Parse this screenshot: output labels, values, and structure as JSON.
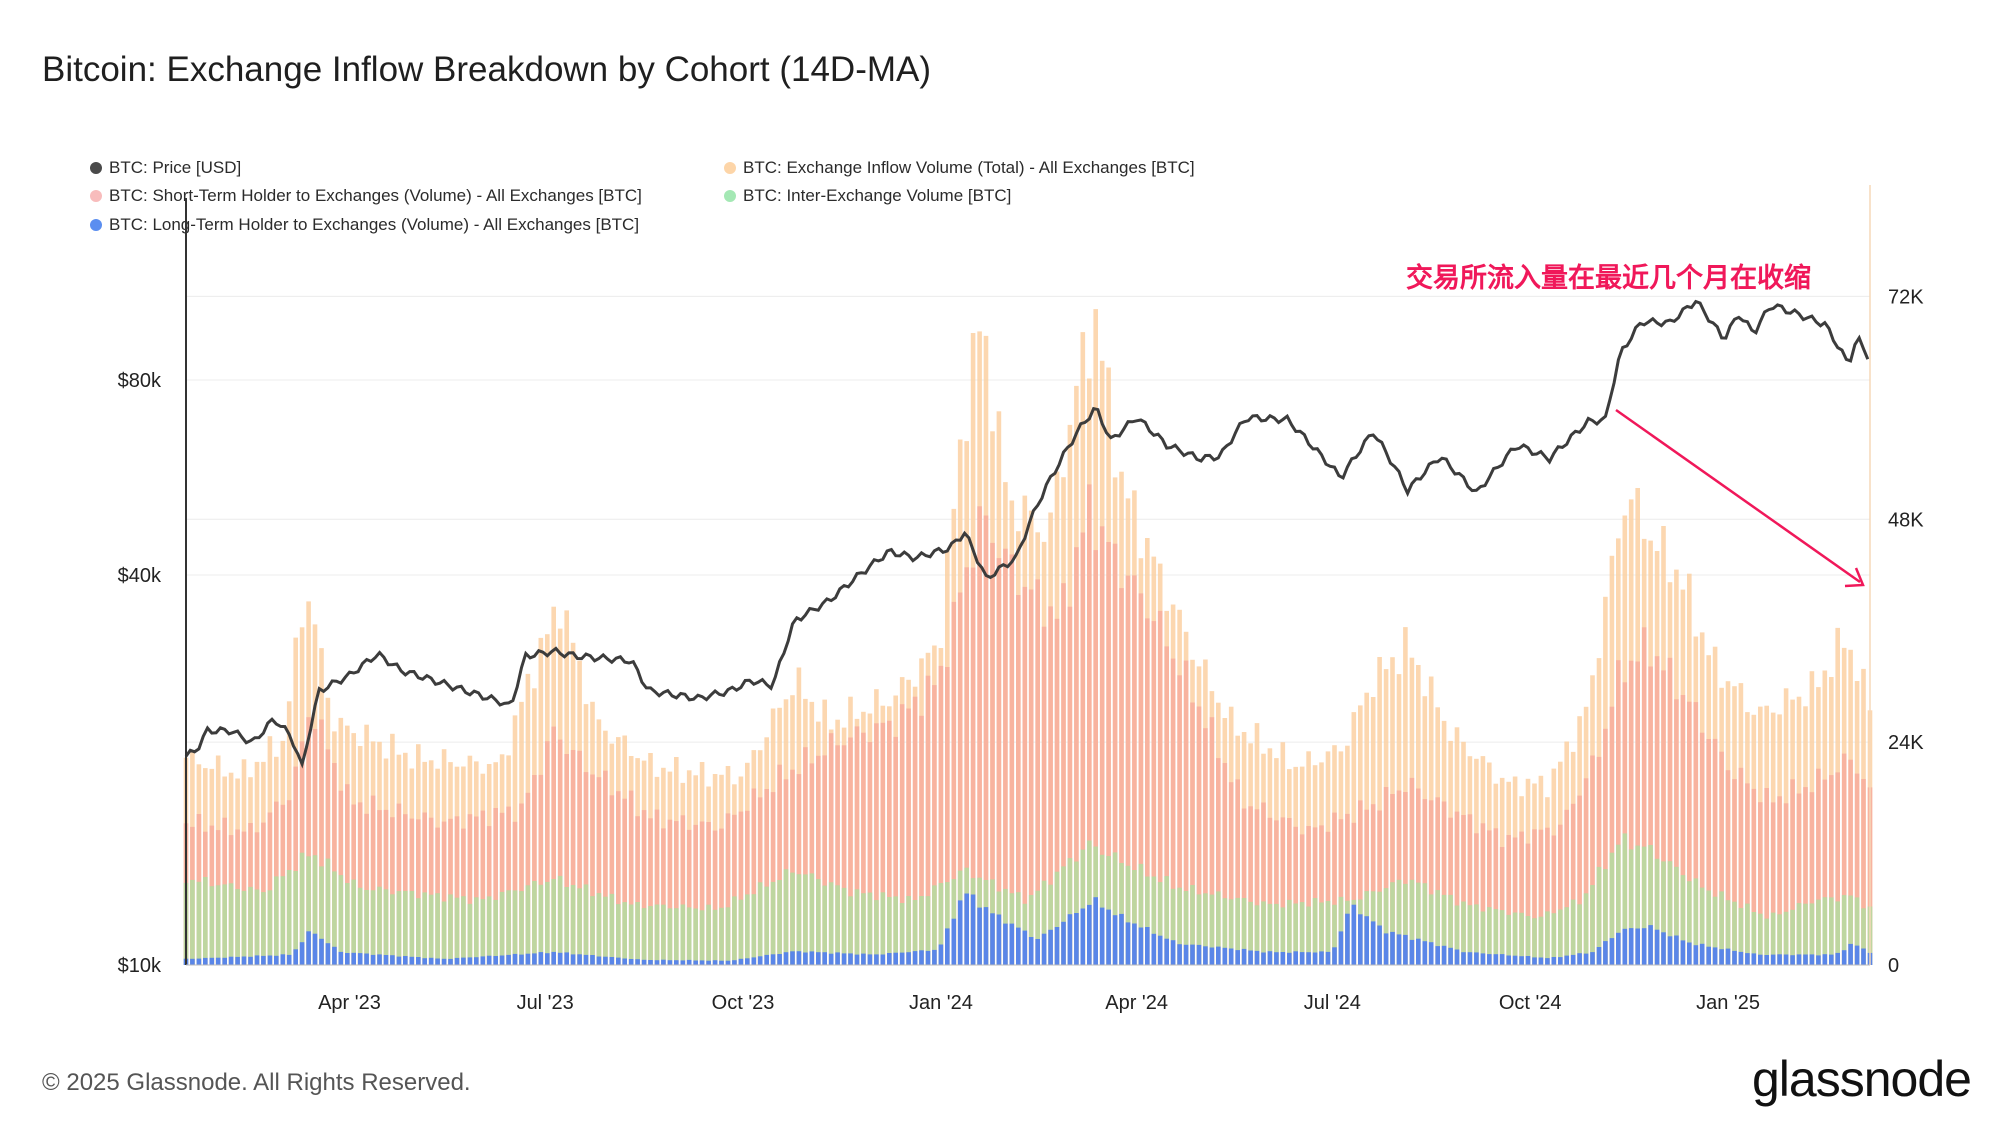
{
  "title": "Bitcoin: Exchange Inflow Breakdown by Cohort (14D-MA)",
  "legend": [
    {
      "label": "BTC: Price [USD]",
      "color": "#4a4a4a"
    },
    {
      "label": "BTC: Exchange Inflow Volume (Total) - All Exchanges [BTC]",
      "color": "#fdd5a8"
    },
    {
      "label": "BTC: Short-Term Holder to Exchanges (Volume) - All Exchanges [BTC]",
      "color": "#f8bcbc"
    },
    {
      "label": "BTC: Inter-Exchange Volume [BTC]",
      "color": "#a4e8b4"
    },
    {
      "label": "BTC: Long-Term Holder to Exchanges (Volume) - All Exchanges [BTC]",
      "color": "#5b8ef0"
    }
  ],
  "annotation": "交易所流入量在最近几个月在收缩",
  "footer": {
    "copyright": "© 2025 Glassnode. All Rights Reserved.",
    "brand": "glassnode"
  },
  "colors": {
    "total": "#fcd0a2",
    "sth": "#f7ad9c",
    "inter": "#b7d9a0",
    "lth": "#5a86e8",
    "price": "#3c3c3c",
    "annotation": "#f0185a",
    "grid": "#ececec"
  },
  "chart_data": {
    "type": "bar",
    "x_start": "2023-01-15",
    "x_end": "2025-03-08",
    "x_ticks": [
      {
        "date": "2023-04-01",
        "label": "Apr '23"
      },
      {
        "date": "2023-07-01",
        "label": "Jul '23"
      },
      {
        "date": "2023-10-01",
        "label": "Oct '23"
      },
      {
        "date": "2024-01-01",
        "label": "Jan '24"
      },
      {
        "date": "2024-04-01",
        "label": "Apr '24"
      },
      {
        "date": "2024-07-01",
        "label": "Jul '24"
      },
      {
        "date": "2024-10-01",
        "label": "Oct '24"
      },
      {
        "date": "2025-01-01",
        "label": "Jan '25"
      }
    ],
    "y_left": {
      "scale": "log",
      "ticks": [
        {
          "value": 10000,
          "label": "$10k"
        },
        {
          "value": 40000,
          "label": "$40k"
        },
        {
          "value": 80000,
          "label": "$80k"
        }
      ],
      "range": [
        10000,
        160000
      ]
    },
    "y_right": {
      "scale": "linear",
      "ticks": [
        {
          "value": 0,
          "label": "0"
        },
        {
          "value": 24000,
          "label": "24K"
        },
        {
          "value": 48000,
          "label": "48K"
        },
        {
          "value": 72000,
          "label": "72K"
        }
      ],
      "range": [
        0,
        84000
      ]
    },
    "stacking": "overlaid",
    "series": [
      {
        "name": "BTC: Exchange Inflow Volume (Total) - All Exchanges [BTC]",
        "axis": "right",
        "points": [
          [
            "2023-01-15",
            24000
          ],
          [
            "2023-02-10",
            22000
          ],
          [
            "2023-03-01",
            26000
          ],
          [
            "2023-03-12",
            44000
          ],
          [
            "2023-03-25",
            28000
          ],
          [
            "2023-05-01",
            24000
          ],
          [
            "2023-06-10",
            23000
          ],
          [
            "2023-06-25",
            34000
          ],
          [
            "2023-07-08",
            42000
          ],
          [
            "2023-07-25",
            28000
          ],
          [
            "2023-08-20",
            23000
          ],
          [
            "2023-09-15",
            22000
          ],
          [
            "2023-10-01",
            22000
          ],
          [
            "2023-10-25",
            33000
          ],
          [
            "2023-11-10",
            28000
          ],
          [
            "2023-12-10",
            31000
          ],
          [
            "2023-12-31",
            37000
          ],
          [
            "2024-01-12",
            64000
          ],
          [
            "2024-01-20",
            75000
          ],
          [
            "2024-02-01",
            54000
          ],
          [
            "2024-02-20",
            50000
          ],
          [
            "2024-03-05",
            68000
          ],
          [
            "2024-03-13",
            75000
          ],
          [
            "2024-03-25",
            56000
          ],
          [
            "2024-04-12",
            45000
          ],
          [
            "2024-04-28",
            36000
          ],
          [
            "2024-05-15",
            28000
          ],
          [
            "2024-06-15",
            23000
          ],
          [
            "2024-07-05",
            25000
          ],
          [
            "2024-07-20",
            33000
          ],
          [
            "2024-08-05",
            37000
          ],
          [
            "2024-08-25",
            27000
          ],
          [
            "2024-09-20",
            21000
          ],
          [
            "2024-10-10",
            21000
          ],
          [
            "2024-10-28",
            30000
          ],
          [
            "2024-11-05",
            42000
          ],
          [
            "2024-11-15",
            55000
          ],
          [
            "2024-11-25",
            50000
          ],
          [
            "2024-12-10",
            45000
          ],
          [
            "2024-12-25",
            35000
          ],
          [
            "2025-01-15",
            29000
          ],
          [
            "2025-02-10",
            32000
          ],
          [
            "2025-02-25",
            38000
          ],
          [
            "2025-03-08",
            30000
          ]
        ]
      },
      {
        "name": "BTC: Short-Term Holder to Exchanges (Volume) - All Exchanges [BTC]",
        "axis": "right",
        "points": [
          [
            "2023-01-15",
            16500
          ],
          [
            "2023-02-15",
            15500
          ],
          [
            "2023-03-05",
            20000
          ],
          [
            "2023-03-14",
            30000
          ],
          [
            "2023-04-01",
            19000
          ],
          [
            "2023-05-15",
            16500
          ],
          [
            "2023-06-20",
            18000
          ],
          [
            "2023-07-05",
            27000
          ],
          [
            "2023-07-20",
            23000
          ],
          [
            "2023-08-20",
            17000
          ],
          [
            "2023-09-20",
            16000
          ],
          [
            "2023-10-20",
            22000
          ],
          [
            "2023-11-15",
            26000
          ],
          [
            "2023-12-10",
            28000
          ],
          [
            "2023-12-31",
            33000
          ],
          [
            "2024-01-12",
            45000
          ],
          [
            "2024-01-20",
            52000
          ],
          [
            "2024-02-05",
            45000
          ],
          [
            "2024-02-25",
            40000
          ],
          [
            "2024-03-10",
            53000
          ],
          [
            "2024-03-20",
            48000
          ],
          [
            "2024-04-10",
            40000
          ],
          [
            "2024-04-30",
            30000
          ],
          [
            "2024-05-20",
            19000
          ],
          [
            "2024-06-20",
            15500
          ],
          [
            "2024-07-20",
            18500
          ],
          [
            "2024-08-05",
            21000
          ],
          [
            "2024-08-25",
            18000
          ],
          [
            "2024-09-20",
            14500
          ],
          [
            "2024-10-15",
            16000
          ],
          [
            "2024-11-01",
            24000
          ],
          [
            "2024-11-12",
            34000
          ],
          [
            "2024-11-25",
            37000
          ],
          [
            "2024-12-15",
            30000
          ],
          [
            "2025-01-01",
            23000
          ],
          [
            "2025-01-20",
            19000
          ],
          [
            "2025-02-10",
            21000
          ],
          [
            "2025-02-28",
            24000
          ],
          [
            "2025-03-08",
            20000
          ]
        ]
      },
      {
        "name": "BTC: Inter-Exchange Volume [BTC]",
        "axis": "right",
        "points": [
          [
            "2023-01-15",
            10000
          ],
          [
            "2023-02-20",
            8500
          ],
          [
            "2023-03-14",
            13000
          ],
          [
            "2023-04-05",
            9000
          ],
          [
            "2023-06-01",
            7500
          ],
          [
            "2023-07-05",
            10000
          ],
          [
            "2023-08-10",
            7000
          ],
          [
            "2023-09-20",
            6500
          ],
          [
            "2023-10-25",
            11000
          ],
          [
            "2023-11-20",
            8500
          ],
          [
            "2023-12-20",
            7500
          ],
          [
            "2024-01-12",
            11000
          ],
          [
            "2024-02-10",
            7500
          ],
          [
            "2024-03-10",
            14000
          ],
          [
            "2024-03-25",
            12000
          ],
          [
            "2024-04-20",
            9000
          ],
          [
            "2024-06-01",
            7000
          ],
          [
            "2024-07-10",
            7500
          ],
          [
            "2024-08-05",
            10000
          ],
          [
            "2024-09-01",
            7000
          ],
          [
            "2024-10-05",
            5500
          ],
          [
            "2024-10-25",
            7500
          ],
          [
            "2024-11-12",
            14500
          ],
          [
            "2024-11-25",
            13500
          ],
          [
            "2024-12-20",
            9000
          ],
          [
            "2025-01-20",
            5500
          ],
          [
            "2025-02-10",
            7500
          ],
          [
            "2025-02-28",
            8000
          ],
          [
            "2025-03-08",
            6500
          ]
        ]
      },
      {
        "name": "BTC: Long-Term Holder to Exchanges (Volume) - All Exchanges [BTC]",
        "axis": "right",
        "points": [
          [
            "2023-01-15",
            700
          ],
          [
            "2023-03-05",
            1200
          ],
          [
            "2023-03-14",
            4000
          ],
          [
            "2023-03-28",
            1500
          ],
          [
            "2023-05-15",
            700
          ],
          [
            "2023-07-05",
            1500
          ],
          [
            "2023-08-15",
            600
          ],
          [
            "2023-09-25",
            500
          ],
          [
            "2023-10-25",
            1600
          ],
          [
            "2023-12-01",
            1200
          ],
          [
            "2023-12-31",
            1800
          ],
          [
            "2024-01-12",
            8500
          ],
          [
            "2024-01-25",
            6000
          ],
          [
            "2024-02-15",
            3000
          ],
          [
            "2024-03-12",
            7500
          ],
          [
            "2024-03-25",
            5500
          ],
          [
            "2024-04-20",
            2500
          ],
          [
            "2024-06-01",
            1500
          ],
          [
            "2024-07-01",
            1500
          ],
          [
            "2024-07-10",
            7000
          ],
          [
            "2024-07-25",
            4000
          ],
          [
            "2024-09-01",
            1500
          ],
          [
            "2024-10-10",
            800
          ],
          [
            "2024-10-30",
            1500
          ],
          [
            "2024-11-12",
            4000
          ],
          [
            "2024-11-25",
            4500
          ],
          [
            "2024-12-15",
            2500
          ],
          [
            "2025-01-15",
            1200
          ],
          [
            "2025-02-20",
            1200
          ],
          [
            "2025-02-28",
            2500
          ],
          [
            "2025-03-08",
            1500
          ]
        ]
      },
      {
        "name": "BTC: Price [USD]",
        "axis": "left",
        "points": [
          [
            "2023-01-15",
            21000
          ],
          [
            "2023-01-20",
            21500
          ],
          [
            "2023-01-25",
            23000
          ],
          [
            "2023-02-05",
            23000
          ],
          [
            "2023-02-15",
            22000
          ],
          [
            "2023-02-25",
            24000
          ],
          [
            "2023-03-05",
            22500
          ],
          [
            "2023-03-10",
            20200
          ],
          [
            "2023-03-18",
            26500
          ],
          [
            "2023-04-01",
            28000
          ],
          [
            "2023-04-14",
            30200
          ],
          [
            "2023-04-25",
            28500
          ],
          [
            "2023-05-10",
            27500
          ],
          [
            "2023-05-25",
            26500
          ],
          [
            "2023-06-10",
            25500
          ],
          [
            "2023-06-15",
            25000
          ],
          [
            "2023-06-22",
            30000
          ],
          [
            "2023-07-05",
            30500
          ],
          [
            "2023-07-15",
            30000
          ],
          [
            "2023-08-10",
            29500
          ],
          [
            "2023-08-18",
            26500
          ],
          [
            "2023-09-10",
            25800
          ],
          [
            "2023-09-25",
            26500
          ],
          [
            "2023-10-05",
            27500
          ],
          [
            "2023-10-15",
            27000
          ],
          [
            "2023-10-25",
            34000
          ],
          [
            "2023-11-10",
            36500
          ],
          [
            "2023-12-08",
            43500
          ],
          [
            "2023-12-20",
            42500
          ],
          [
            "2024-01-05",
            44000
          ],
          [
            "2024-01-12",
            46500
          ],
          [
            "2024-01-22",
            39500
          ],
          [
            "2024-02-05",
            42500
          ],
          [
            "2024-02-15",
            51500
          ],
          [
            "2024-02-28",
            62000
          ],
          [
            "2024-03-05",
            67000
          ],
          [
            "2024-03-13",
            72500
          ],
          [
            "2024-03-20",
            64500
          ],
          [
            "2024-04-01",
            70000
          ],
          [
            "2024-04-15",
            63500
          ],
          [
            "2024-04-30",
            60500
          ],
          [
            "2024-05-10",
            61000
          ],
          [
            "2024-05-22",
            70000
          ],
          [
            "2024-06-10",
            69500
          ],
          [
            "2024-06-25",
            61500
          ],
          [
            "2024-07-05",
            56500
          ],
          [
            "2024-07-20",
            66500
          ],
          [
            "2024-08-05",
            54000
          ],
          [
            "2024-08-20",
            61000
          ],
          [
            "2024-09-06",
            53500
          ],
          [
            "2024-09-25",
            63500
          ],
          [
            "2024-10-10",
            60500
          ],
          [
            "2024-10-28",
            69000
          ],
          [
            "2024-11-05",
            69500
          ],
          [
            "2024-11-12",
            88000
          ],
          [
            "2024-11-22",
            98500
          ],
          [
            "2024-12-05",
            98000
          ],
          [
            "2024-12-17",
            106000
          ],
          [
            "2024-12-30",
            92500
          ],
          [
            "2025-01-06",
            101000
          ],
          [
            "2025-01-13",
            94500
          ],
          [
            "2025-01-21",
            104500
          ],
          [
            "2025-02-01",
            101500
          ],
          [
            "2025-02-15",
            97500
          ],
          [
            "2025-02-26",
            84500
          ],
          [
            "2025-03-02",
            93000
          ],
          [
            "2025-03-08",
            86000
          ]
        ]
      }
    ]
  }
}
